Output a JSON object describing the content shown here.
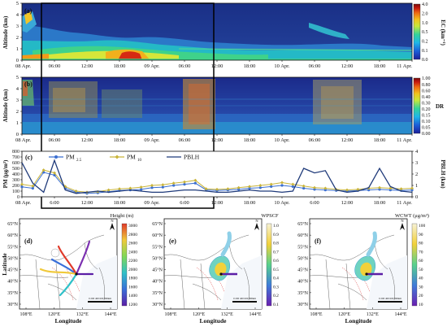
{
  "figure": {
    "time_ticks": [
      "08 Apr.",
      "06:00",
      "12:00",
      "18:00",
      "09 Apr.",
      "06:00",
      "12:00",
      "18:00",
      "10 Apr.",
      "06:00",
      "12:00",
      "18:00",
      "11 Apr."
    ],
    "time_ticks_c": [
      "08 Apr.",
      "6:00",
      "12:00",
      "18:00",
      "09 Apr.",
      "6:00",
      "12:00",
      "18:00",
      "10 Apr.",
      "6:00",
      "12:00",
      "18:00",
      "11 Apr."
    ],
    "panel_a": {
      "label": "(a)",
      "ylabel": "Altitude (km)",
      "yticks": [
        "0",
        "1",
        "2",
        "3",
        "4",
        "5"
      ],
      "cbar_label": "EC (km⁻¹)",
      "cbar_ticks": [
        "4.0",
        "2.0",
        "1.0",
        "0.5",
        "0.2",
        "0.1",
        "0.0"
      ],
      "cbar_colors": [
        "#1c1f9a",
        "#1c5ed8",
        "#1fb7e8",
        "#34d39a",
        "#c7e83a",
        "#f2c21c",
        "#ee6a12",
        "#c4180f",
        "#7a0d0a"
      ]
    },
    "panel_b": {
      "label": "(b)",
      "ylabel": "Altitude (km)",
      "yticks": [
        "0",
        "1",
        "2",
        "3",
        "4",
        "5"
      ],
      "cbar_label": "DR",
      "cbar_ticks": [
        "1.00",
        "0.80",
        "0.60",
        "0.40",
        "0.30",
        "0.20",
        "0.15",
        "0.10",
        "0.05",
        "0.00"
      ],
      "cbar_colors": [
        "#1c1f9a",
        "#1c5ed8",
        "#1fb7e8",
        "#34d39a",
        "#c7e83a",
        "#f2c21c",
        "#ee6a12",
        "#c4180f",
        "#7a0d0a"
      ]
    },
    "panel_c": {
      "label": "(c)",
      "ylabel_left": "PM (μg/m³)",
      "ylabel_right": "PBLH (km)",
      "yticks_left": [
        "0",
        "100",
        "200",
        "300",
        "400",
        "500",
        "600",
        "700",
        "800"
      ],
      "yticks_right": [
        "0",
        "1",
        "2",
        "3",
        "4"
      ],
      "legend": [
        {
          "text": "PM",
          "sub": "2.5",
          "color": "#3b6fd1"
        },
        {
          "text": "PM",
          "sub": "10",
          "color": "#c9b43a"
        },
        {
          "text": "PBLH",
          "sub": "",
          "color": "#1f3a7a"
        }
      ]
    },
    "maps": [
      {
        "label": "(d)",
        "cbar_title": "Height (m)",
        "cbar_ticks": [
          "3000",
          "2800",
          "2600",
          "2400",
          "2200",
          "2000",
          "1800",
          "1600",
          "1400",
          "1200"
        ]
      },
      {
        "label": "(e)",
        "cbar_title": "WPSCF",
        "cbar_ticks": [
          "1.0",
          "0.9",
          "0.8",
          "0.7",
          "0.6",
          "0.5",
          "0.4",
          "0.3",
          "0.2",
          "0.1"
        ]
      },
      {
        "label": "(f)",
        "cbar_title": "WCWT (μg/m³)",
        "cbar_ticks": [
          "100",
          "90",
          "80",
          "70",
          "60",
          "50",
          "40",
          "30",
          "20",
          "10"
        ]
      }
    ],
    "map_axes": {
      "lat_ticks": [
        "65°N",
        "60°N",
        "55°N",
        "50°N",
        "45°N",
        "40°N",
        "35°N",
        "30°N"
      ],
      "lon_ticks": [
        "108°E",
        "120°E",
        "132°E",
        "144°E"
      ],
      "xlabel": "Longitude",
      "ylabel": "Latitude",
      "scale": "0 200 400 600 800km",
      "north": "N"
    }
  },
  "chart_data": [
    {
      "type": "heatmap",
      "title": "",
      "xlabel": "",
      "ylabel": "Altitude (km)",
      "ylim": [
        0,
        5
      ],
      "colorbar_label": "EC (km⁻¹)",
      "colorbar_range": [
        0.0,
        4.0
      ]
    },
    {
      "type": "heatmap",
      "title": "",
      "xlabel": "",
      "ylabel": "Altitude (km)",
      "ylim": [
        0,
        5
      ],
      "colorbar_label": "DR",
      "colorbar_range": [
        0.0,
        1.0
      ]
    },
    {
      "type": "line",
      "title": "",
      "x_hours_label": "time since 08 Apr. 00:00 (h)",
      "ylabel": "PM (μg/m³)",
      "ylabel_right": "PBLH (km)",
      "ylim": [
        0,
        800
      ],
      "ylim_right": [
        0,
        4
      ],
      "grid": false,
      "legend": "top-left",
      "series": [
        {
          "name": "PM2.5",
          "axis": "left",
          "x": [
            0,
            2,
            4,
            6,
            8,
            10,
            12,
            14,
            16,
            18,
            20,
            22,
            24,
            26,
            28,
            30,
            32,
            34,
            36,
            38,
            40,
            42,
            44,
            46,
            48,
            50,
            52,
            54,
            56,
            58,
            60,
            62,
            64,
            66,
            68,
            70,
            72
          ],
          "values": [
            175,
            150,
            430,
            380,
            150,
            80,
            60,
            70,
            90,
            110,
            120,
            130,
            160,
            170,
            200,
            220,
            240,
            120,
            110,
            120,
            130,
            150,
            160,
            180,
            200,
            180,
            150,
            130,
            120,
            110,
            100,
            110,
            120,
            130,
            120,
            110,
            120
          ]
        },
        {
          "name": "PM10",
          "axis": "left",
          "x": [
            0,
            2,
            4,
            6,
            8,
            10,
            12,
            14,
            16,
            18,
            20,
            22,
            24,
            26,
            28,
            30,
            32,
            34,
            36,
            38,
            40,
            42,
            44,
            46,
            48,
            50,
            52,
            54,
            56,
            58,
            60,
            62,
            64,
            66,
            68,
            70,
            72
          ],
          "values": [
            220,
            190,
            470,
            420,
            180,
            100,
            80,
            90,
            120,
            140,
            150,
            170,
            200,
            210,
            240,
            260,
            290,
            140,
            130,
            140,
            160,
            180,
            200,
            220,
            250,
            220,
            190,
            160,
            150,
            130,
            120,
            130,
            150,
            160,
            150,
            140,
            150
          ]
        },
        {
          "name": "PBLH",
          "axis": "right",
          "x": [
            0,
            2,
            4,
            6,
            8,
            10,
            12,
            14,
            16,
            18,
            20,
            22,
            24,
            26,
            28,
            30,
            32,
            34,
            36,
            38,
            40,
            42,
            44,
            46,
            48,
            50,
            52,
            54,
            56,
            58,
            60,
            62,
            64,
            66,
            68,
            70,
            72
          ],
          "values": [
            3.0,
            1.2,
            0.4,
            3.2,
            0.6,
            0.3,
            0.4,
            0.5,
            0.4,
            0.5,
            0.6,
            0.5,
            0.4,
            0.4,
            0.5,
            0.6,
            0.6,
            0.5,
            0.4,
            0.4,
            0.5,
            0.6,
            0.5,
            0.5,
            0.4,
            0.5,
            2.5,
            2.1,
            2.3,
            0.6,
            0.4,
            0.5,
            0.8,
            2.5,
            0.9,
            0.5,
            0.4
          ]
        }
      ]
    }
  ]
}
